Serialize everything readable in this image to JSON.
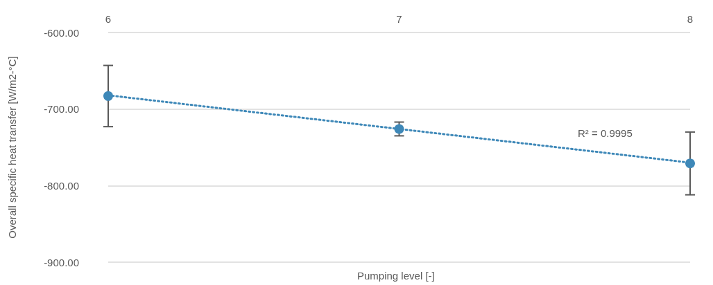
{
  "chart_data": {
    "type": "scatter",
    "xlabel": "Pumping level [-]",
    "ylabel": "Overall specific heat transfer [W/m2-°C]",
    "x": [
      6,
      7,
      8
    ],
    "series": [
      {
        "color": "#3e88b8",
        "values": [
          -683,
          -726,
          -771
        ],
        "errors": [
          40,
          9,
          41
        ],
        "marker": "circle"
      },
      {
        "type": "line",
        "color": "#3e88b8",
        "x": [
          6,
          8
        ],
        "values": [
          -682,
          -770
        ],
        "line_style": "dotted",
        "marker": "none"
      }
    ],
    "xlim": [
      6,
      8
    ],
    "xticks": [
      6,
      7,
      8
    ],
    "ylim": [
      -900,
      -600
    ],
    "yticks": [
      {
        "value": -900,
        "label": "-900.00"
      },
      {
        "value": -800,
        "label": "-800.00"
      },
      {
        "value": -700,
        "label": "-700.00"
      },
      {
        "value": -600,
        "label": "-600.00"
      }
    ],
    "grid": "y",
    "annotations": [
      "R² = 0.9995"
    ]
  }
}
